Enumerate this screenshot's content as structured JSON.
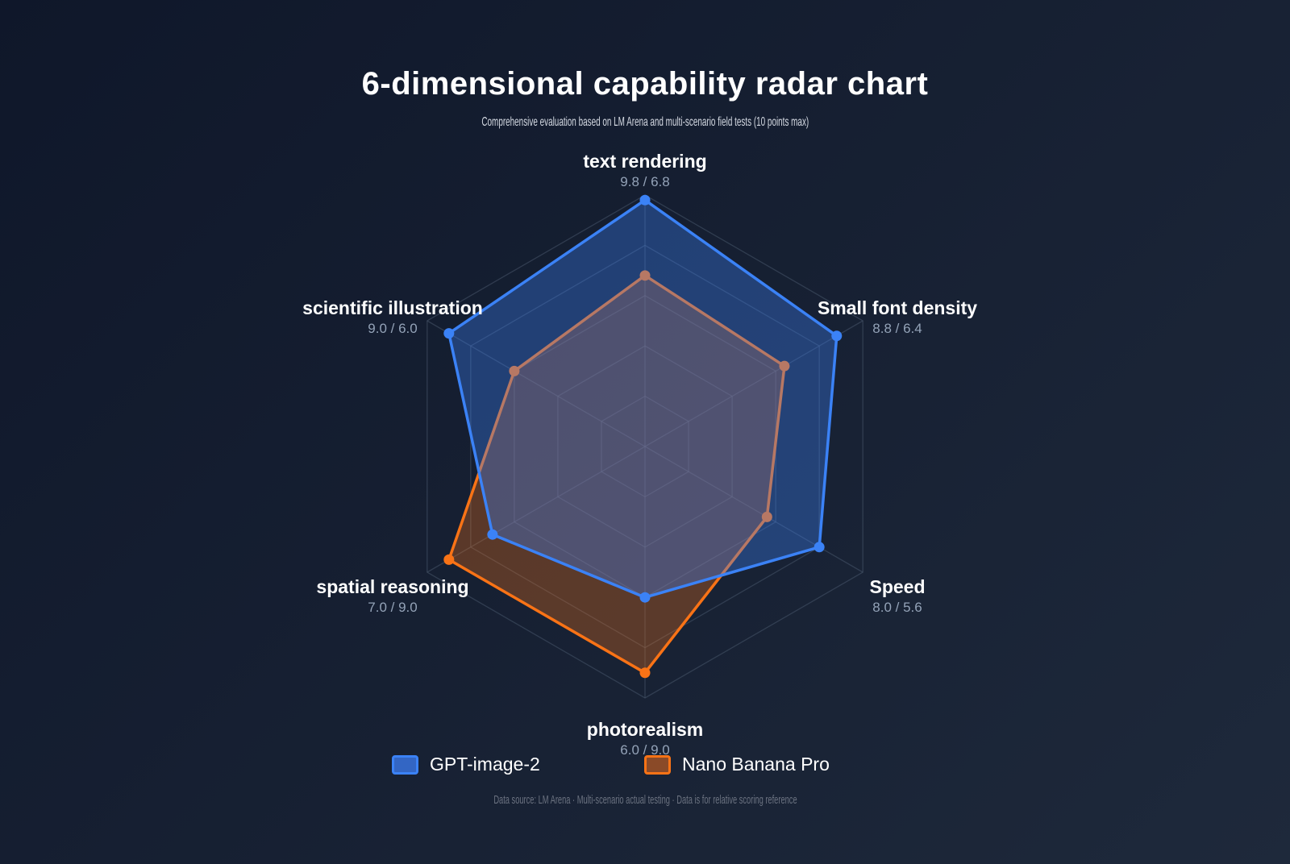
{
  "title": "6-dimensional capability radar chart",
  "subtitle": "Comprehensive evaluation based on LM Arena and multi-scenario field tests (10 points max)",
  "footer": "Data source: LM Arena · Multi-scenario actual testing · Data is for relative scoring reference",
  "colors": {
    "background_start": "#0f172a",
    "background_end": "#1e293b",
    "grid": "#475569",
    "gpt": "#3b82f6",
    "nano": "#f97316"
  },
  "axes": [
    {
      "label": "text rendering",
      "values_text": "9.8 / 6.8"
    },
    {
      "label": "Small font density",
      "values_text": "8.8 / 6.4"
    },
    {
      "label": "Speed",
      "values_text": "8.0 / 5.6"
    },
    {
      "label": "photorealism",
      "values_text": "6.0 / 9.0"
    },
    {
      "label": "spatial reasoning",
      "values_text": "7.0 / 9.0"
    },
    {
      "label": "scientific illustration",
      "values_text": "9.0 / 6.0"
    }
  ],
  "legend": [
    {
      "name": "GPT-image-2"
    },
    {
      "name": "Nano Banana Pro"
    }
  ],
  "chart_data": {
    "type": "radar",
    "title": "6-dimensional capability radar chart",
    "subtitle": "Comprehensive evaluation based on LM Arena and multi-scenario field tests (10 points max)",
    "categories": [
      "text rendering",
      "Small font density",
      "Speed",
      "photorealism",
      "spatial reasoning",
      "scientific illustration"
    ],
    "series": [
      {
        "name": "GPT-image-2",
        "values": [
          9.8,
          8.8,
          8.0,
          6.0,
          7.0,
          9.0
        ],
        "color": "#3b82f6"
      },
      {
        "name": "Nano Banana Pro",
        "values": [
          6.8,
          6.4,
          5.6,
          9.0,
          9.0,
          6.0
        ],
        "color": "#f97316"
      }
    ],
    "range": [
      0,
      10
    ],
    "grid_levels": [
      2,
      4,
      6,
      8,
      10
    ],
    "grid": true,
    "legend_position": "bottom",
    "footnote": "Data source: LM Arena · Multi-scenario actual testing · Data is for relative scoring reference"
  }
}
